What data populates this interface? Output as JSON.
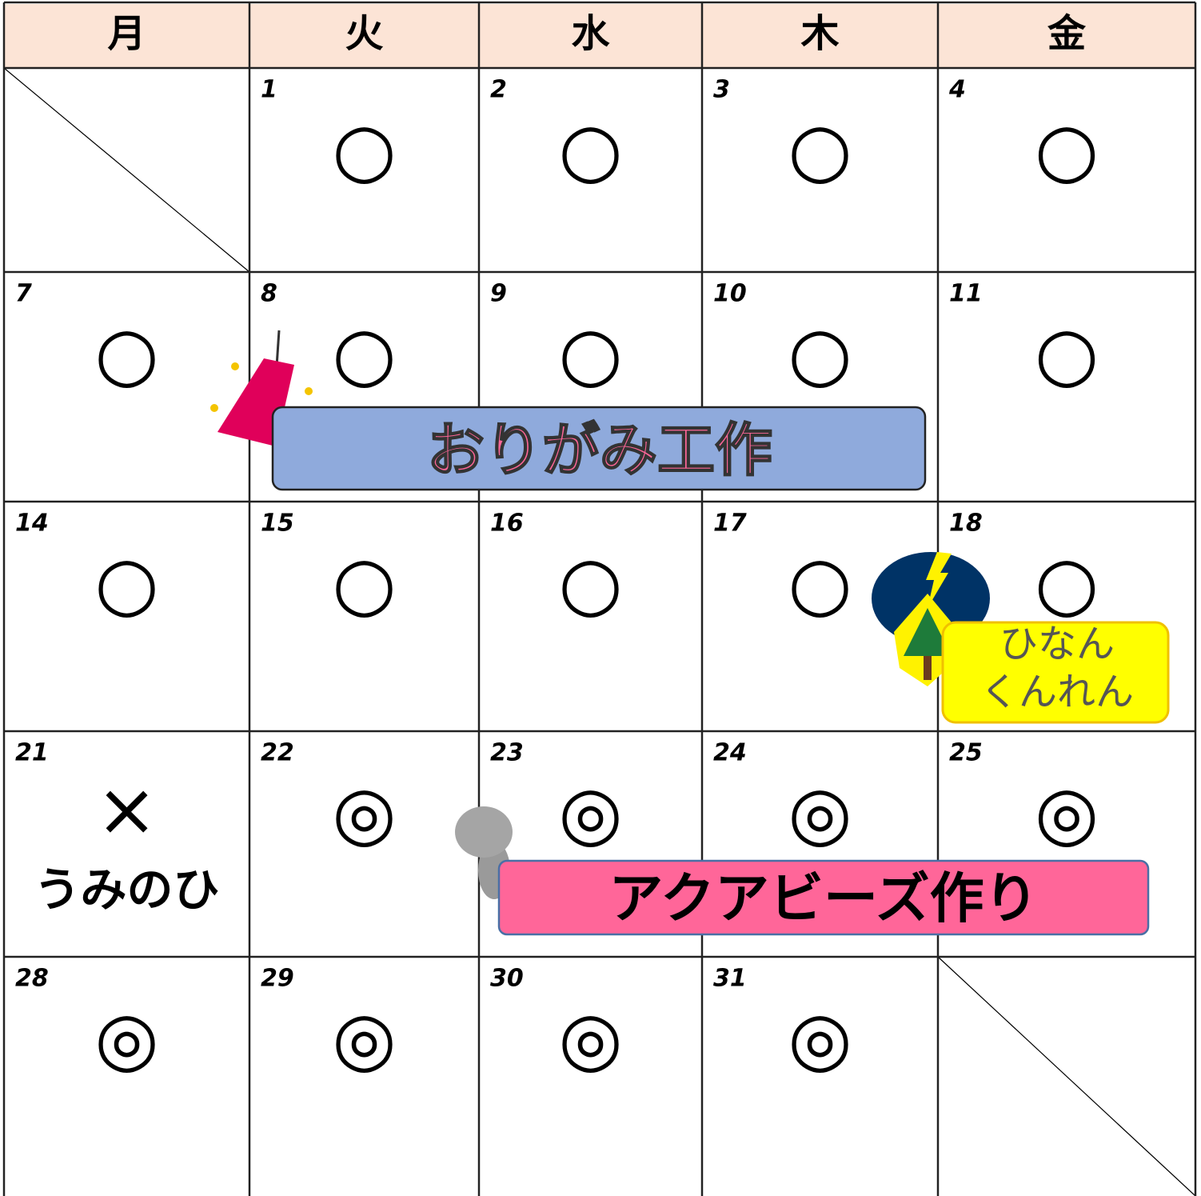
{
  "header": [
    "月",
    "火",
    "水",
    "木",
    "金"
  ],
  "weeks": [
    [
      null,
      {
        "day": 1,
        "mark": "○"
      },
      {
        "day": 2,
        "mark": "○"
      },
      {
        "day": 3,
        "mark": "○"
      },
      {
        "day": 4,
        "mark": "○"
      }
    ],
    [
      {
        "day": 7,
        "mark": "○"
      },
      {
        "day": 8,
        "mark": "○"
      },
      {
        "day": 9,
        "mark": "○"
      },
      {
        "day": 10,
        "mark": "○"
      },
      {
        "day": 11,
        "mark": "○"
      }
    ],
    [
      {
        "day": 14,
        "mark": "○"
      },
      {
        "day": 15,
        "mark": "○"
      },
      {
        "day": 16,
        "mark": "○"
      },
      {
        "day": 17,
        "mark": "○"
      },
      {
        "day": 18,
        "mark": "○"
      }
    ],
    [
      {
        "day": 21,
        "mark": "×",
        "note": "うみのひ"
      },
      {
        "day": 22,
        "mark": "◎"
      },
      {
        "day": 23,
        "mark": "◎"
      },
      {
        "day": 24,
        "mark": "◎"
      },
      {
        "day": 25,
        "mark": "◎"
      }
    ],
    [
      {
        "day": 28,
        "mark": "◎"
      },
      {
        "day": 29,
        "mark": "◎"
      },
      {
        "day": 30,
        "mark": "◎"
      },
      {
        "day": 31,
        "mark": "◎"
      },
      null
    ]
  ],
  "events": {
    "origami": "おりがみ工作",
    "aquabeads": "アクアビーズ作り",
    "drill": [
      "ひなん",
      "くんれん"
    ]
  }
}
